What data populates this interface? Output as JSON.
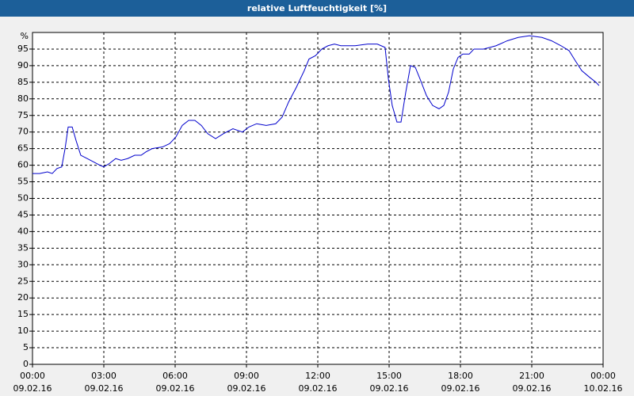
{
  "chart_data": {
    "type": "line",
    "title": "relative Luftfeuchtigkeit [%]",
    "y_label": "%",
    "x": [
      0,
      0.3,
      0.63,
      0.83,
      1.03,
      1.23,
      1.37,
      1.5,
      1.67,
      1.83,
      2.03,
      2.3,
      2.57,
      2.83,
      3.0,
      3.23,
      3.5,
      3.73,
      4.0,
      4.3,
      4.57,
      4.77,
      5.03,
      5.47,
      5.77,
      6.03,
      6.3,
      6.57,
      6.83,
      7.1,
      7.37,
      7.7,
      8.03,
      8.43,
      8.83,
      9.1,
      9.43,
      9.83,
      10.23,
      10.5,
      10.77,
      11.1,
      11.43,
      11.63,
      11.9,
      12.17,
      12.43,
      12.7,
      12.97,
      13.57,
      14.1,
      14.5,
      14.83,
      14.97,
      15.13,
      15.33,
      15.5,
      15.7,
      15.9,
      16.1,
      16.3,
      16.57,
      16.83,
      17.1,
      17.3,
      17.5,
      17.7,
      17.9,
      18.1,
      18.37,
      18.57,
      18.97,
      19.5,
      19.97,
      20.43,
      20.9,
      21.43,
      21.83,
      22.23,
      22.57,
      22.83,
      23.1,
      23.43,
      23.7,
      23.83
    ],
    "series": [
      {
        "name": "relative Luftfeuchtigkeit",
        "color": "#0000cc",
        "values": [
          57.5,
          57.5,
          58,
          57.5,
          59,
          59.5,
          65,
          71.5,
          71.5,
          67.5,
          63,
          62,
          61,
          60,
          59.5,
          60.5,
          62,
          61.5,
          62,
          63,
          63,
          64,
          65,
          65.5,
          66.5,
          68.5,
          72,
          73.5,
          73.5,
          72,
          69.5,
          68,
          69.5,
          71,
          70,
          71.5,
          72.5,
          72,
          72.5,
          74.5,
          79,
          83.5,
          88.5,
          92,
          93,
          95,
          96,
          96.5,
          96,
          96,
          96.5,
          96.5,
          95.5,
          86,
          78,
          73,
          73,
          82,
          90,
          89.5,
          86,
          81,
          78,
          77,
          78,
          82,
          89,
          92.5,
          93.5,
          93.5,
          95,
          95,
          96,
          97.5,
          98.5,
          99,
          98.5,
          97.5,
          96,
          94.5,
          91.5,
          88.5,
          86.5,
          85,
          84
        ]
      }
    ],
    "xlim": [
      0,
      24
    ],
    "xticks": [
      {
        "value": 0,
        "label": "00:00"
      },
      {
        "value": 3,
        "label": "03:00"
      },
      {
        "value": 6,
        "label": "06:00"
      },
      {
        "value": 9,
        "label": "09:00"
      },
      {
        "value": 12,
        "label": "12:00"
      },
      {
        "value": 15,
        "label": "15:00"
      },
      {
        "value": 18,
        "label": "18:00"
      },
      {
        "value": 21,
        "label": "21:00"
      },
      {
        "value": 24,
        "label": "00:00"
      }
    ],
    "xtick_dates": [
      "09.02.16",
      "09.02.16",
      "09.02.16",
      "09.02.16",
      "09.02.16",
      "09.02.16",
      "09.02.16",
      "09.02.16",
      "10.02.16"
    ],
    "ylim": [
      0,
      100
    ],
    "yticks": [
      0,
      5,
      10,
      15,
      20,
      25,
      30,
      35,
      40,
      45,
      50,
      55,
      60,
      65,
      70,
      75,
      80,
      85,
      90,
      95
    ],
    "grid": true
  }
}
